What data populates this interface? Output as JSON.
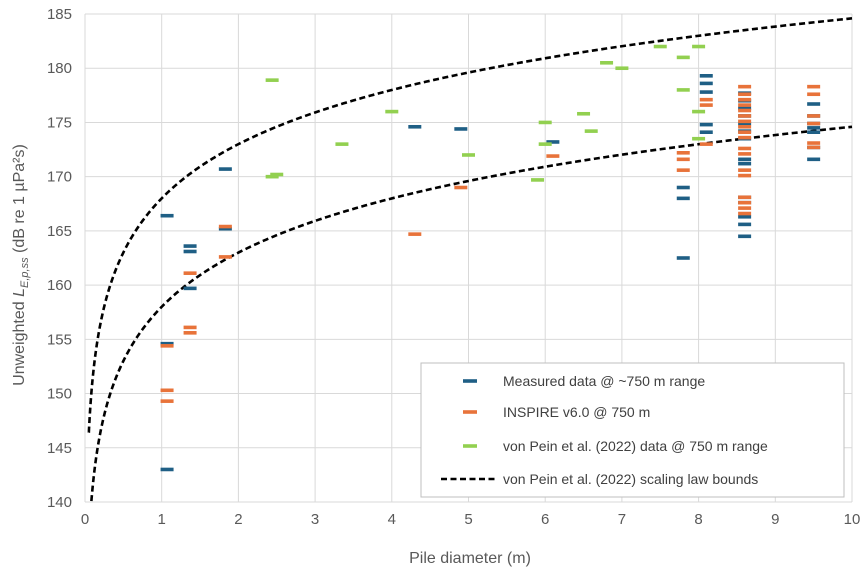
{
  "chart_data": {
    "type": "scatter",
    "title": "",
    "xlabel": "Pile diameter (m)",
    "ylabel": {
      "prefix": "Unweighted ",
      "symbol": "L",
      "subscript": "E,p,ss",
      "suffix": " (dB re 1 µPa²s)"
    },
    "xlim": [
      0,
      10
    ],
    "ylim": [
      140,
      185
    ],
    "x_ticks": [
      "0",
      "1",
      "2",
      "3",
      "4",
      "5",
      "6",
      "7",
      "8",
      "9",
      "10"
    ],
    "y_ticks": [
      "140",
      "145",
      "150",
      "155",
      "160",
      "165",
      "170",
      "175",
      "180",
      "185"
    ],
    "grid": "vertical and horizontal major gridlines",
    "legend_position": "bottom-right",
    "series": [
      {
        "name": "Measured data @ ~750 m range",
        "marker": "dash",
        "color": "#1f5f85",
        "points": [
          [
            1.07,
            166.4
          ],
          [
            1.07,
            154.6
          ],
          [
            1.07,
            143.0
          ],
          [
            1.37,
            163.6
          ],
          [
            1.37,
            163.1
          ],
          [
            1.37,
            159.7
          ],
          [
            1.83,
            170.7
          ],
          [
            1.83,
            165.2
          ],
          [
            4.3,
            174.6
          ],
          [
            4.9,
            174.4
          ],
          [
            6.1,
            173.2
          ],
          [
            7.8,
            169.0
          ],
          [
            7.8,
            168.0
          ],
          [
            7.8,
            162.5
          ],
          [
            8.1,
            179.3
          ],
          [
            8.1,
            178.6
          ],
          [
            8.1,
            177.8
          ],
          [
            8.1,
            174.8
          ],
          [
            8.1,
            174.1
          ],
          [
            8.6,
            177.7
          ],
          [
            8.6,
            177.0
          ],
          [
            8.6,
            176.3
          ],
          [
            8.6,
            175.6
          ],
          [
            8.6,
            174.9
          ],
          [
            8.6,
            174.2
          ],
          [
            8.6,
            173.5
          ],
          [
            8.6,
            171.6
          ],
          [
            8.6,
            171.2
          ],
          [
            8.6,
            168.1
          ],
          [
            8.6,
            167.6
          ],
          [
            8.6,
            166.3
          ],
          [
            8.6,
            165.6
          ],
          [
            8.6,
            164.5
          ],
          [
            9.5,
            176.7
          ],
          [
            9.5,
            175.6
          ],
          [
            9.5,
            174.9
          ],
          [
            9.5,
            174.5
          ],
          [
            9.5,
            174.1
          ],
          [
            9.5,
            172.7
          ],
          [
            9.5,
            171.6
          ]
        ]
      },
      {
        "name": "INSPIRE v6.0 @ 750 m",
        "marker": "dash",
        "color": "#e8733a",
        "points": [
          [
            1.07,
            154.4
          ],
          [
            1.07,
            150.3
          ],
          [
            1.07,
            149.3
          ],
          [
            1.37,
            161.1
          ],
          [
            1.37,
            156.1
          ],
          [
            1.37,
            155.6
          ],
          [
            1.83,
            165.4
          ],
          [
            1.83,
            162.6
          ],
          [
            4.3,
            164.7
          ],
          [
            4.9,
            169.0
          ],
          [
            6.1,
            171.9
          ],
          [
            7.8,
            172.2
          ],
          [
            7.8,
            171.6
          ],
          [
            7.8,
            170.6
          ],
          [
            8.1,
            177.1
          ],
          [
            8.1,
            176.6
          ],
          [
            8.1,
            173.0
          ],
          [
            8.6,
            178.3
          ],
          [
            8.6,
            177.6
          ],
          [
            8.6,
            177.1
          ],
          [
            8.6,
            176.6
          ],
          [
            8.6,
            176.1
          ],
          [
            8.6,
            175.6
          ],
          [
            8.6,
            175.1
          ],
          [
            8.6,
            174.6
          ],
          [
            8.6,
            174.1
          ],
          [
            8.6,
            173.6
          ],
          [
            8.6,
            172.6
          ],
          [
            8.6,
            172.1
          ],
          [
            8.6,
            170.6
          ],
          [
            8.6,
            170.1
          ],
          [
            8.6,
            168.1
          ],
          [
            8.6,
            167.6
          ],
          [
            8.6,
            167.1
          ],
          [
            8.6,
            166.6
          ],
          [
            9.5,
            178.3
          ],
          [
            9.5,
            177.6
          ],
          [
            9.5,
            175.6
          ],
          [
            9.5,
            174.9
          ],
          [
            9.5,
            173.1
          ],
          [
            9.5,
            172.7
          ]
        ]
      },
      {
        "name": "von Pein et al. (2022) data @ 750 m range",
        "marker": "dash",
        "color": "#92d050",
        "points": [
          [
            2.44,
            178.9
          ],
          [
            2.44,
            170.0
          ],
          [
            2.5,
            170.2
          ],
          [
            3.35,
            173.0
          ],
          [
            4.0,
            176.0
          ],
          [
            5.0,
            172.0
          ],
          [
            5.9,
            169.7
          ],
          [
            6.0,
            175.0
          ],
          [
            6.0,
            173.0
          ],
          [
            6.5,
            175.8
          ],
          [
            6.6,
            174.2
          ],
          [
            6.8,
            180.5
          ],
          [
            7.0,
            180.0
          ],
          [
            7.5,
            182.0
          ],
          [
            7.8,
            181.0
          ],
          [
            7.8,
            178.0
          ],
          [
            8.0,
            182.0
          ],
          [
            8.0,
            176.0
          ],
          [
            8.0,
            173.5
          ]
        ]
      },
      {
        "name": "von Pein et al. (2022) scaling law bounds",
        "marker": "dashed-line",
        "color": "#000000",
        "curves": [
          {
            "label": "upper",
            "intercept_at_1m": 168.0,
            "slope_per_decade": 16.6
          },
          {
            "label": "lower",
            "intercept_at_1m": 158.0,
            "slope_per_decade": 16.6
          }
        ]
      }
    ]
  },
  "colors": {
    "background": "#ffffff",
    "grid": "#d9d9d9",
    "legend_border": "#bfbfbf"
  }
}
